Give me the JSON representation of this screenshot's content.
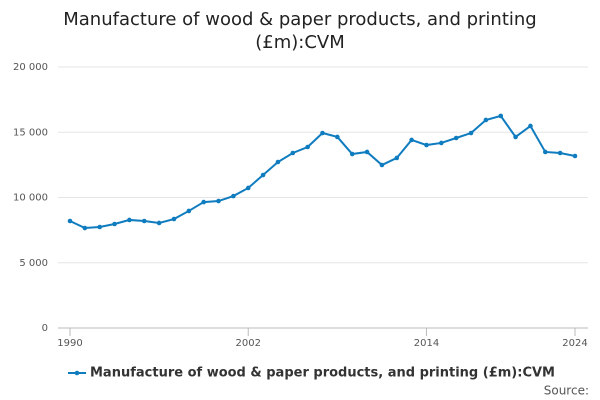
{
  "chart_data": {
    "type": "line",
    "title": "Manufacture of wood & paper products, and printing (£m):CVM",
    "x": [
      1990,
      1991,
      1992,
      1993,
      1994,
      1995,
      1996,
      1997,
      1998,
      1999,
      2000,
      2001,
      2002,
      2003,
      2004,
      2005,
      2006,
      2007,
      2008,
      2009,
      2010,
      2011,
      2012,
      2013,
      2014,
      2015,
      2016,
      2017,
      2018,
      2019,
      2020,
      2021,
      2022,
      2023,
      2024
    ],
    "series": [
      {
        "name": "Manufacture of wood & paper products, and printing (£m):CVM",
        "color": "#0f7cbf",
        "values": [
          8200,
          7660,
          7740,
          7970,
          8280,
          8200,
          8050,
          8350,
          8970,
          9650,
          9730,
          10110,
          10730,
          11720,
          12720,
          13410,
          13870,
          14940,
          14640,
          13330,
          13490,
          12490,
          13030,
          14410,
          14020,
          14180,
          14560,
          14940,
          15940,
          16250,
          14640,
          15480,
          13490,
          13410,
          13180
        ]
      }
    ],
    "xlim": [
      1990,
      2024
    ],
    "xticks": [
      1990,
      2002,
      2014,
      2024
    ],
    "ylim": [
      0,
      20000
    ],
    "yticks": [
      0,
      {
        "value": 5000,
        "label": "5 000"
      },
      {
        "value": 10000,
        "label": "10 000"
      },
      {
        "value": 15000,
        "label": "15 000"
      },
      {
        "value": 20000,
        "label": "20 000"
      }
    ],
    "grid": true,
    "legend": "bottom",
    "source": "Source:"
  }
}
